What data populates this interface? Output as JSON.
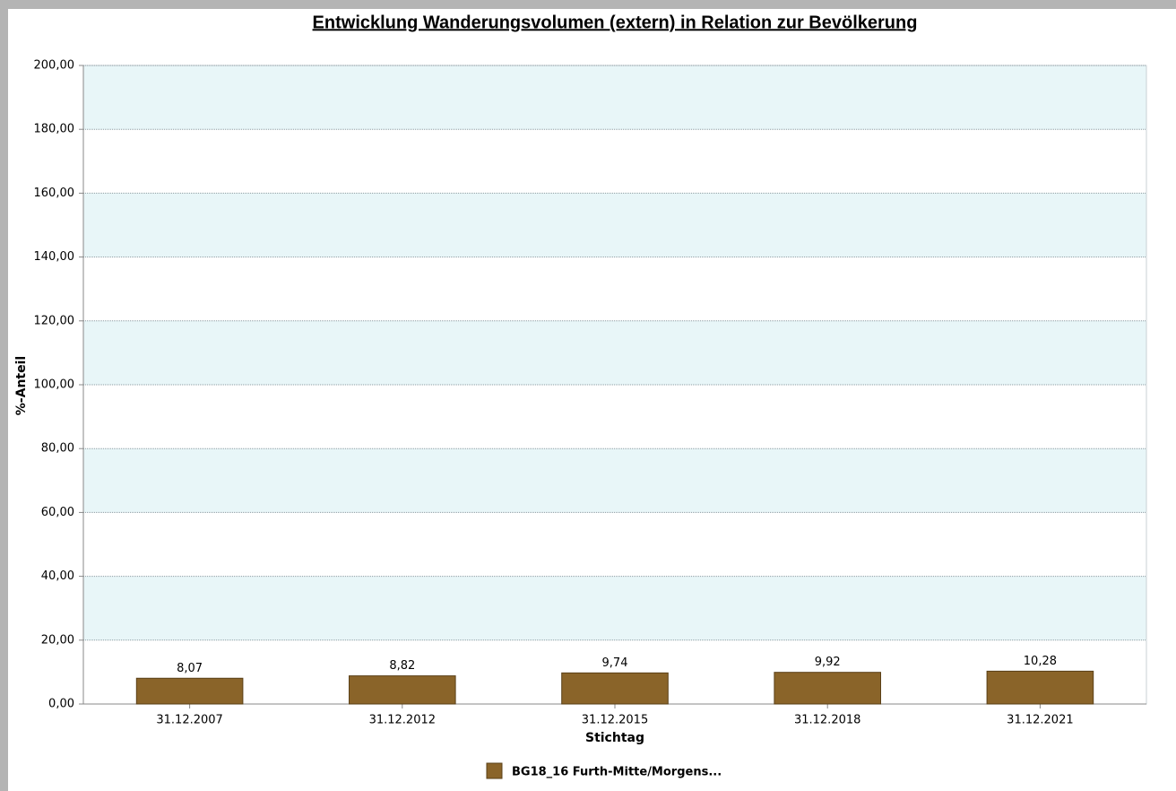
{
  "chart_data": {
    "type": "bar",
    "title": "Entwicklung Wanderungsvolumen (extern) in Relation zur Bevölkerung",
    "x_label": "Stichtag",
    "y_label": "%-Anteil",
    "categories": [
      "31.12.2007",
      "31.12.2012",
      "31.12.2015",
      "31.12.2018",
      "31.12.2021"
    ],
    "series": [
      {
        "name": "BG18_16 Furth-Mitte/Morgens...",
        "color": "#8a6429",
        "values": [
          8.07,
          8.82,
          9.74,
          9.92,
          10.28
        ],
        "value_labels": [
          "8,07",
          "8,82",
          "9,74",
          "9,92",
          "10,28"
        ]
      }
    ],
    "ylim": [
      0,
      200
    ],
    "yticks": [
      {
        "value": 0,
        "label": "0,00"
      },
      {
        "value": 20,
        "label": "20,00"
      },
      {
        "value": 40,
        "label": "40,00"
      },
      {
        "value": 60,
        "label": "60,00"
      },
      {
        "value": 80,
        "label": "80,00"
      },
      {
        "value": 100,
        "label": "100,00"
      },
      {
        "value": 120,
        "label": "120,00"
      },
      {
        "value": 140,
        "label": "140,00"
      },
      {
        "value": 160,
        "label": "160,00"
      },
      {
        "value": 180,
        "label": "180,00"
      },
      {
        "value": 200,
        "label": "200,00"
      }
    ],
    "grid": true,
    "legend": "bottom"
  }
}
